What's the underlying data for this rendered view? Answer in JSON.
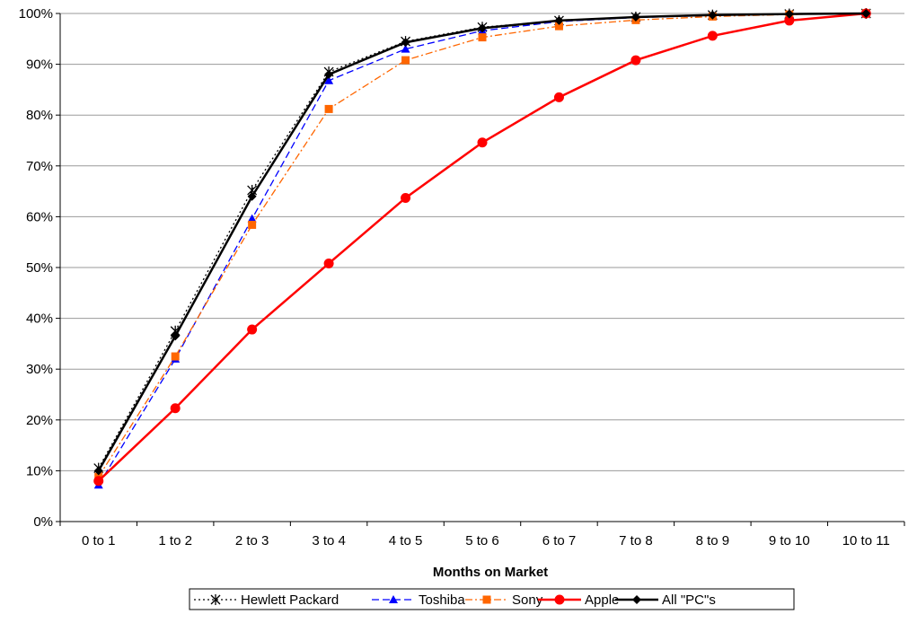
{
  "chart_data": {
    "type": "line",
    "title": "",
    "xlabel": "Months on Market",
    "ylabel": "",
    "categories": [
      "0 to 1",
      "1 to 2",
      "2 to 3",
      "3 to 4",
      "4 to 5",
      "5 to 6",
      "6 to 7",
      "7 to 8",
      "8 to 9",
      "9 to 10",
      "10 to 11"
    ],
    "ylim": [
      0,
      100
    ],
    "y_ticks": [
      "0%",
      "10%",
      "20%",
      "30%",
      "40%",
      "50%",
      "60%",
      "70%",
      "80%",
      "90%",
      "100%"
    ],
    "grid": "horizontal",
    "legend_position": "bottom",
    "series": [
      {
        "name": "Hewlett Packard",
        "color": "#000000",
        "dash": "dotted",
        "marker": "star",
        "values": [
          10.5,
          37.5,
          65.2,
          88.5,
          94.5,
          97.3,
          98.6,
          99.3,
          99.7,
          99.9,
          100
        ]
      },
      {
        "name": "Toshiba",
        "color": "#0000ff",
        "dash": "dashed",
        "marker": "triangle",
        "values": [
          7.2,
          32.0,
          59.6,
          86.8,
          93.0,
          96.6,
          98.4,
          99.2,
          99.6,
          99.9,
          100
        ]
      },
      {
        "name": "Sony",
        "color": "#ff6600",
        "dash": "dashdot",
        "marker": "square",
        "values": [
          8.8,
          32.5,
          58.4,
          81.2,
          90.8,
          95.3,
          97.5,
          98.7,
          99.4,
          99.8,
          100
        ]
      },
      {
        "name": "Apple",
        "color": "#ff0000",
        "dash": "solid",
        "marker": "circle",
        "values": [
          8.0,
          22.3,
          37.8,
          50.8,
          63.7,
          74.6,
          83.5,
          90.8,
          95.6,
          98.6,
          100
        ]
      },
      {
        "name": "All \"PC\"s",
        "color": "#000000",
        "dash": "solid",
        "marker": "diamond",
        "values": [
          10.0,
          36.5,
          64.0,
          88.0,
          94.3,
          97.1,
          98.6,
          99.3,
          99.7,
          99.9,
          100
        ]
      }
    ]
  }
}
